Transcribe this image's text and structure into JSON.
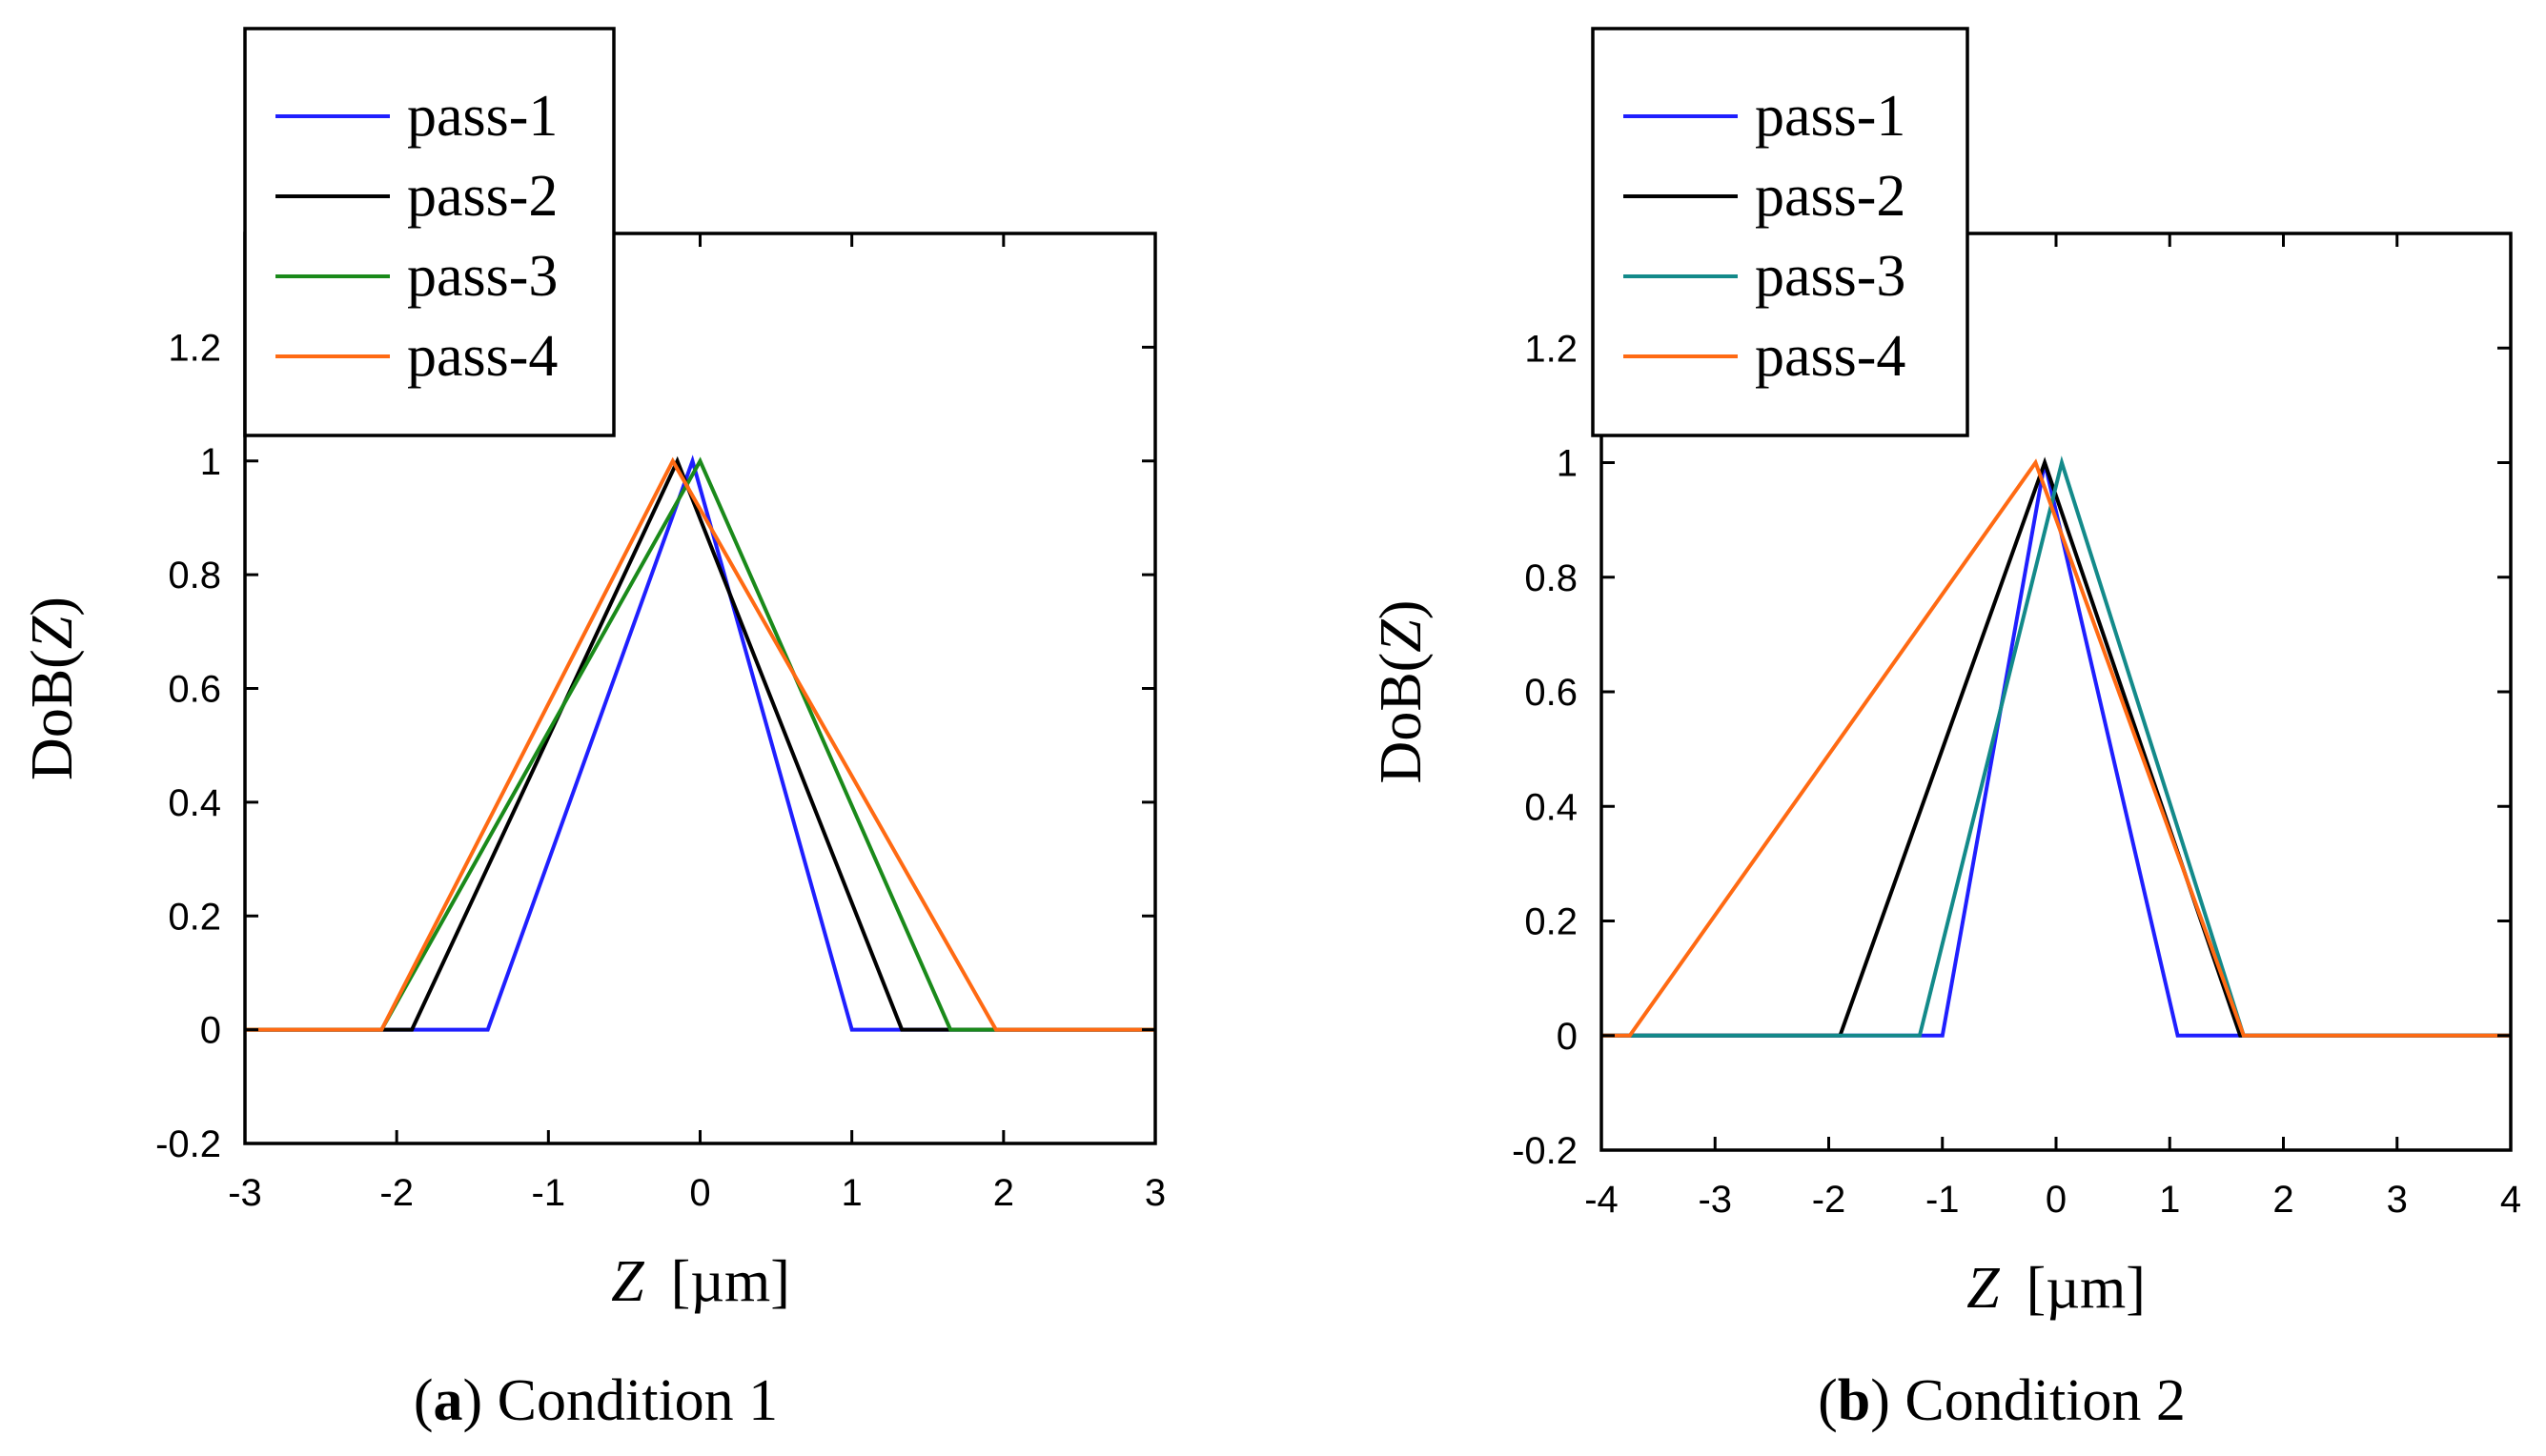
{
  "chart_data": [
    {
      "type": "line",
      "caption": {
        "letter": "a",
        "text": " Condition 1"
      },
      "xlabel": {
        "var": "Z",
        "unit": "[µm]"
      },
      "ylabel": {
        "main": "DoB(",
        "var": "Z",
        "close": ")"
      },
      "xlim": [
        -3,
        3
      ],
      "ylim": [
        -0.2,
        1.4
      ],
      "xticks": [
        -3,
        -2,
        -1,
        0,
        1,
        2,
        3
      ],
      "yticks": [
        -0.2,
        0,
        0.2,
        0.4,
        0.6,
        0.8,
        1,
        1.2
      ],
      "xtick_labels": [
        "-3",
        "-2",
        "-1",
        "0",
        "1",
        "2",
        "3"
      ],
      "ytick_labels": [
        "-0.2",
        "0",
        "0.2",
        "0.4",
        "0.6",
        "0.8",
        "1",
        "1.2"
      ],
      "legend_position": "top-left",
      "series": [
        {
          "name": "pass-1",
          "color": "#1f1fff",
          "x": [
            -3,
            -1.4,
            -0.05,
            1.0,
            3
          ],
          "y": [
            0,
            0,
            1,
            0,
            0
          ]
        },
        {
          "name": "pass-2",
          "color": "#000000",
          "x": [
            -3,
            -1.9,
            -0.15,
            1.33,
            3
          ],
          "y": [
            0,
            0,
            1,
            0,
            0
          ]
        },
        {
          "name": "pass-3",
          "color": "#1a8a1a",
          "x": [
            -3,
            -2.1,
            0.0,
            1.65,
            3
          ],
          "y": [
            0,
            0,
            1,
            0,
            0
          ]
        },
        {
          "name": "pass-4",
          "color": "#ff6a13",
          "x": [
            -3,
            -2.1,
            -0.18,
            1.95,
            3
          ],
          "y": [
            0,
            0,
            1,
            0,
            0
          ]
        }
      ]
    },
    {
      "type": "line",
      "caption": {
        "letter": "b",
        "text": " Condition 2"
      },
      "xlabel": {
        "var": "Z",
        "unit": "[µm]"
      },
      "ylabel": {
        "main": "DoB(",
        "var": "Z",
        "close": ")"
      },
      "xlim": [
        -4,
        4
      ],
      "ylim": [
        -0.2,
        1.4
      ],
      "xticks": [
        -4,
        -3,
        -2,
        -1,
        0,
        1,
        2,
        3,
        4
      ],
      "yticks": [
        -0.2,
        0,
        0.2,
        0.4,
        0.6,
        0.8,
        1,
        1.2
      ],
      "xtick_labels": [
        "-4",
        "-3",
        "-2",
        "-1",
        "0",
        "1",
        "2",
        "3",
        "4"
      ],
      "ytick_labels": [
        "-0.2",
        "0",
        "0.2",
        "0.4",
        "0.6",
        "0.8",
        "1",
        "1.2"
      ],
      "legend_position": "top-left",
      "series": [
        {
          "name": "pass-1",
          "color": "#1f1fff",
          "x": [
            -4,
            -1.0,
            -0.1,
            1.07,
            4
          ],
          "y": [
            0,
            0,
            1,
            0,
            0
          ]
        },
        {
          "name": "pass-2",
          "color": "#000000",
          "x": [
            -4,
            -1.9,
            -0.1,
            1.62,
            4
          ],
          "y": [
            0,
            0,
            1,
            0,
            0
          ]
        },
        {
          "name": "pass-3",
          "color": "#138a8a",
          "x": [
            -4,
            -1.2,
            0.05,
            1.65,
            4
          ],
          "y": [
            0,
            0,
            1,
            0,
            0
          ]
        },
        {
          "name": "pass-4",
          "color": "#ff6a13",
          "x": [
            -4,
            -3.75,
            -0.18,
            1.65,
            4
          ],
          "y": [
            0,
            0,
            1,
            0,
            0
          ]
        }
      ]
    }
  ]
}
